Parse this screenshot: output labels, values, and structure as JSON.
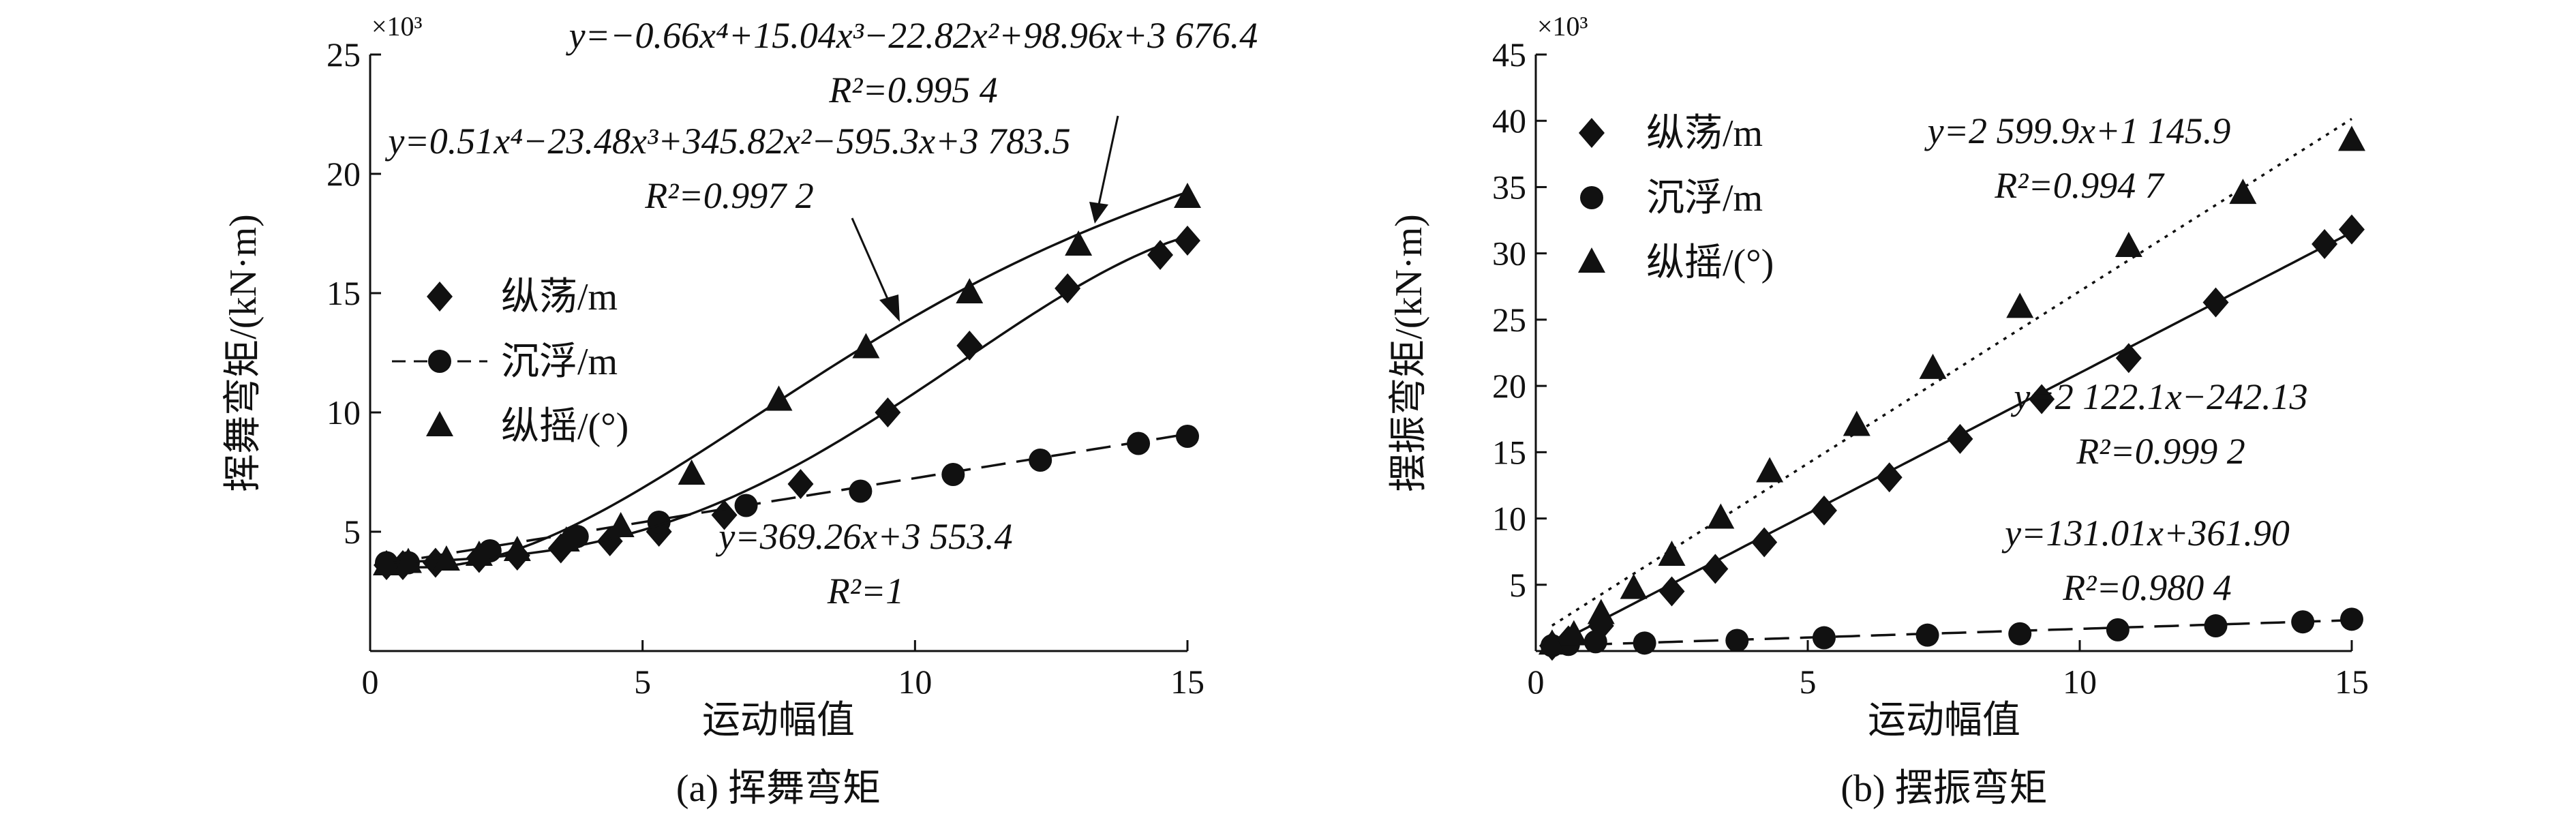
{
  "chart_data": [
    {
      "type": "scatter",
      "caption": "(a) 挥舞弯矩",
      "xlabel": "运动幅值",
      "ylabel": "挥舞弯矩/(kN·m)",
      "multiplier": "×10³",
      "xlim": [
        0,
        15
      ],
      "ylim": [
        0,
        25
      ],
      "xticks": [
        "0",
        "5",
        "10",
        "15"
      ],
      "yticks": [
        "5",
        "10",
        "15",
        "20",
        "25"
      ],
      "legend_position": "center-left",
      "series": [
        {
          "name": "纵荡/m",
          "marker": "diamond",
          "line": "solid",
          "x": [
            0.3,
            0.6,
            1.2,
            2.0,
            2.7,
            3.5,
            4.4,
            5.3,
            6.5,
            7.9,
            9.5,
            11.0,
            12.8,
            14.5,
            15.0
          ],
          "y": [
            3.6,
            3.6,
            3.7,
            3.9,
            4.0,
            4.3,
            4.6,
            5.0,
            5.7,
            7.0,
            10.0,
            12.8,
            15.2,
            16.6,
            17.2
          ],
          "fit": {
            "type": "poly",
            "coef": [
              0.51,
              -23.48,
              345.82,
              -595.3,
              3783.5
            ]
          }
        },
        {
          "name": "沉浮/m",
          "marker": "circle",
          "line": "dashed",
          "x": [
            0.3,
            0.7,
            2.2,
            3.8,
            5.3,
            6.9,
            9.0,
            10.7,
            12.3,
            14.1,
            15.0
          ],
          "y": [
            3.7,
            3.7,
            4.2,
            4.8,
            5.4,
            6.1,
            6.7,
            7.4,
            8.0,
            8.7,
            9.0
          ],
          "fit": {
            "type": "poly",
            "coef": [
              369.26,
              3553.4
            ]
          }
        },
        {
          "name": "纵摇/(°)",
          "marker": "triangle",
          "line": "solid",
          "x": [
            0.3,
            0.7,
            1.4,
            2.0,
            2.7,
            3.6,
            4.6,
            5.9,
            7.5,
            9.1,
            11.0,
            13.0,
            15.0
          ],
          "y": [
            3.6,
            3.7,
            3.8,
            4.0,
            4.2,
            4.6,
            5.2,
            7.4,
            10.5,
            12.7,
            15.0,
            17.0,
            19.0
          ],
          "fit": {
            "type": "poly",
            "coef": [
              -0.66,
              15.04,
              -22.82,
              98.96,
              3676.4
            ]
          }
        }
      ],
      "annotations": [
        {
          "id": "pitch",
          "eq": "y=−0.66x⁴+15.04x³−22.82x²+98.96x+3 676.4",
          "r2": "R²=0.995 4"
        },
        {
          "id": "surge",
          "eq": "y=0.51x⁴−23.48x³+345.82x²−595.3x+3 783.5",
          "r2": "R²=0.997 2"
        },
        {
          "id": "heave",
          "eq": "y=369.26x+3 553.4",
          "r2": "R²=1"
        }
      ]
    },
    {
      "type": "scatter",
      "caption": "(b) 摆振弯矩",
      "xlabel": "运动幅值",
      "ylabel": "摆振弯矩/(kN·m)",
      "multiplier": "×10³",
      "xlim": [
        0,
        15
      ],
      "ylim": [
        0,
        45
      ],
      "xticks": [
        "0",
        "5",
        "10",
        "15"
      ],
      "yticks": [
        "5",
        "10",
        "15",
        "20",
        "25",
        "30",
        "35",
        "40",
        "45"
      ],
      "legend_position": "top-left",
      "series": [
        {
          "name": "纵荡/m",
          "marker": "diamond",
          "line": "solid",
          "x": [
            0.3,
            0.6,
            1.2,
            2.5,
            3.3,
            4.2,
            5.3,
            6.5,
            7.8,
            9.3,
            10.9,
            12.5,
            14.5,
            15.0
          ],
          "y": [
            0.4,
            0.8,
            1.9,
            4.5,
            6.2,
            8.2,
            10.6,
            13.1,
            16.0,
            19.0,
            22.1,
            26.3,
            30.7,
            31.8
          ],
          "fit": {
            "type": "poly",
            "coef": [
              2122.1,
              -242.13
            ]
          }
        },
        {
          "name": "沉浮/m",
          "marker": "circle",
          "line": "dashed",
          "x": [
            0.3,
            0.6,
            1.1,
            2.0,
            3.7,
            5.3,
            7.2,
            8.9,
            10.7,
            12.5,
            14.1,
            15.0
          ],
          "y": [
            0.4,
            0.5,
            0.7,
            0.6,
            0.8,
            1.0,
            1.2,
            1.3,
            1.6,
            1.9,
            2.2,
            2.4
          ],
          "fit": {
            "type": "poly",
            "coef": [
              131.01,
              361.9
            ]
          }
        },
        {
          "name": "纵摇/(°)",
          "marker": "triangle",
          "line": "dotted",
          "x": [
            0.3,
            0.7,
            1.2,
            1.8,
            2.5,
            3.4,
            4.3,
            5.9,
            7.3,
            8.9,
            10.9,
            13.0,
            15.0
          ],
          "y": [
            0.5,
            1.2,
            2.8,
            4.7,
            7.2,
            10.0,
            13.5,
            17.0,
            21.3,
            25.9,
            30.5,
            34.5,
            38.5
          ],
          "fit": {
            "type": "poly",
            "coef": [
              2599.9,
              1145.9
            ]
          }
        }
      ],
      "annotations": [
        {
          "id": "pitch",
          "eq": "y=2 599.9x+1 145.9",
          "r2": "R²=0.994 7"
        },
        {
          "id": "surge",
          "eq": "y=2 122.1x−242.13",
          "r2": "R²=0.999 2"
        },
        {
          "id": "heave",
          "eq": "y=131.01x+361.90",
          "r2": "R²=0.980 4"
        }
      ]
    }
  ]
}
